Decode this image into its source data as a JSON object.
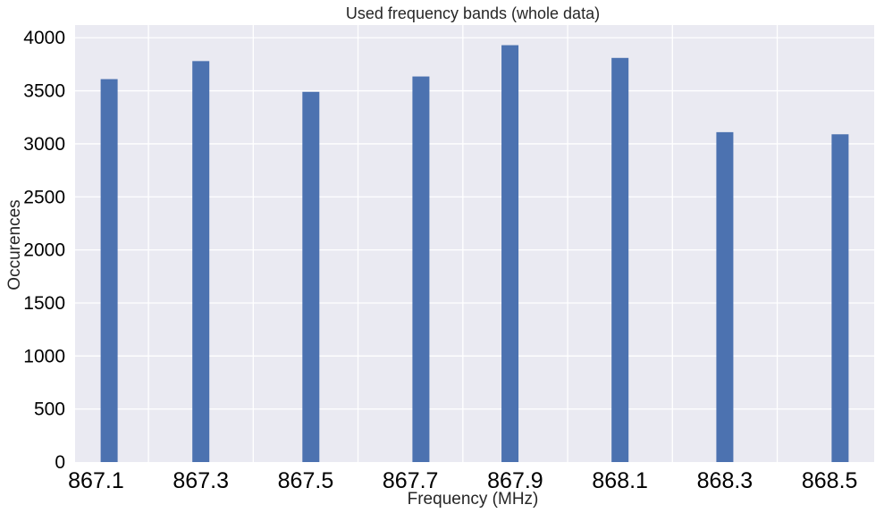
{
  "chart_data": {
    "type": "bar",
    "title": "Used frequency bands (whole data)",
    "xlabel": "Frequency (MHz)",
    "ylabel": "Occurences",
    "x": [
      867.1,
      867.3,
      867.5,
      867.7,
      867.9,
      868.1,
      868.3,
      868.5
    ],
    "values": [
      3610,
      3780,
      3490,
      3635,
      3930,
      3810,
      3110,
      3090
    ],
    "xticks": [
      "867.1",
      "867.3",
      "867.5",
      "867.7",
      "867.9",
      "868.1",
      "868.3",
      "868.5"
    ],
    "yticks": [
      "0",
      "500",
      "1000",
      "1500",
      "2000",
      "2500",
      "3000",
      "3500",
      "4000"
    ],
    "ylim": [
      0,
      4120
    ],
    "grid": true,
    "colors": {
      "bar": "#4c72b0",
      "plot_background": "#eaeaf2",
      "grid": "#ffffff"
    }
  }
}
